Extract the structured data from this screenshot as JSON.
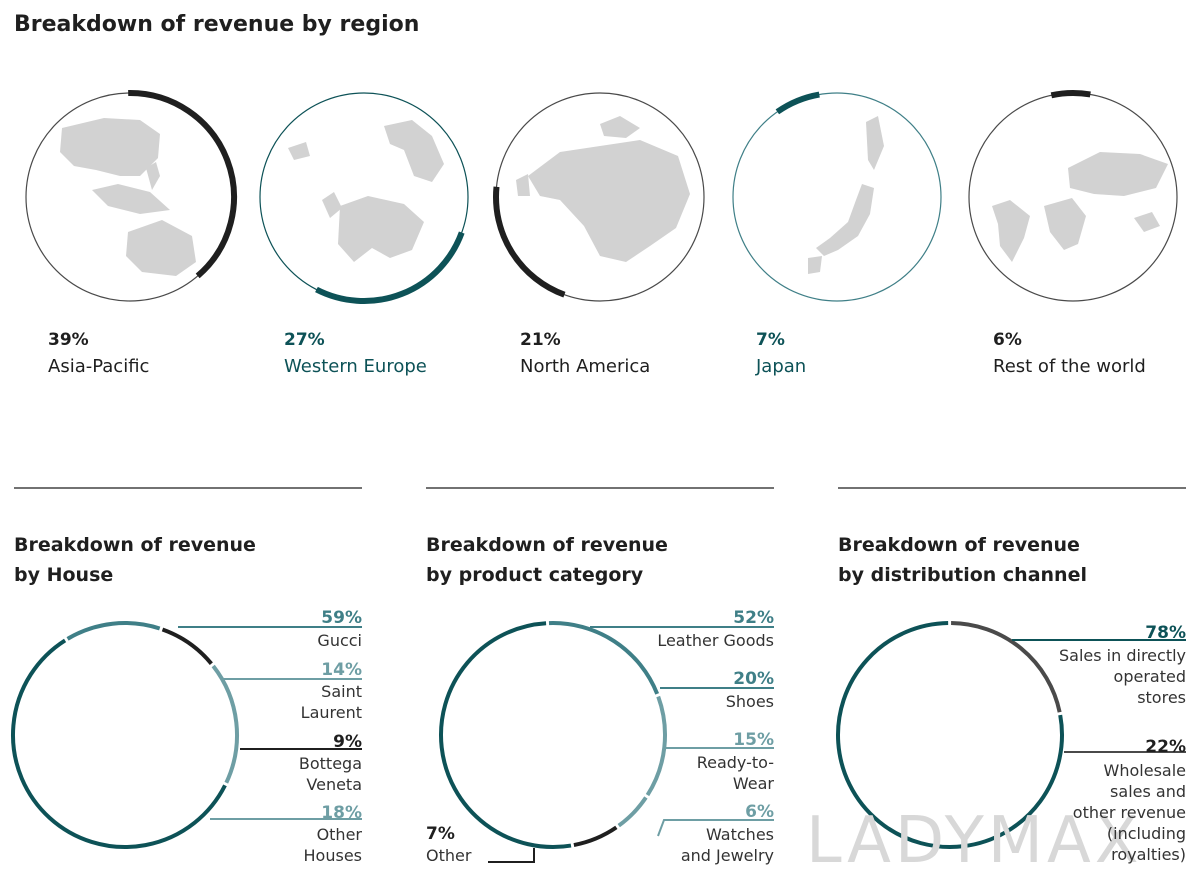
{
  "title": "Breakdown of revenue by region",
  "colors": {
    "dark": "#1f1f1f",
    "teal": "#0d5257",
    "teal_mid": "#3f7f87",
    "teal_light": "#6e9ea4",
    "grey_ring": "#4a4a4a"
  },
  "regions": [
    {
      "pct": "39%",
      "label": "Asia-Pacific",
      "value": 39,
      "color": "dark",
      "map": "asia-pacific-map-icon"
    },
    {
      "pct": "27%",
      "label": "Western Europe",
      "value": 27,
      "color": "teal",
      "map": "europe-map-icon"
    },
    {
      "pct": "21%",
      "label": "North America",
      "value": 21,
      "color": "dark",
      "map": "north-america-map-icon"
    },
    {
      "pct": "7%",
      "label": "Japan",
      "value": 7,
      "color": "teal",
      "map": "japan-map-icon"
    },
    {
      "pct": "6%",
      "label": "Rest of the world",
      "value": 6,
      "color": "dark",
      "map": "world-map-icon"
    }
  ],
  "house": {
    "title_line1": "Breakdown of revenue",
    "title_line2": "by House",
    "items": [
      {
        "pct": "59%",
        "lines": [
          "Gucci"
        ],
        "value": 59
      },
      {
        "pct": "14%",
        "lines": [
          "Saint",
          "Laurent"
        ],
        "value": 14
      },
      {
        "pct": "9%",
        "lines": [
          "Bottega",
          "Veneta"
        ],
        "value": 9
      },
      {
        "pct": "18%",
        "lines": [
          "Other",
          "Houses"
        ],
        "value": 18
      }
    ]
  },
  "category": {
    "title_line1": "Breakdown of revenue",
    "title_line2": "by product category",
    "items": [
      {
        "pct": "52%",
        "lines": [
          "Leather Goods"
        ],
        "value": 52
      },
      {
        "pct": "20%",
        "lines": [
          "Shoes"
        ],
        "value": 20
      },
      {
        "pct": "15%",
        "lines": [
          "Ready-to-",
          "Wear"
        ],
        "value": 15
      },
      {
        "pct": "6%",
        "lines": [
          "Watches",
          "and Jewelry"
        ],
        "value": 6
      },
      {
        "pct": "7%",
        "lines": [
          "Other"
        ],
        "value": 7
      }
    ]
  },
  "channel": {
    "title_line1": "Breakdown of revenue",
    "title_line2": "by distribution channel",
    "items": [
      {
        "pct": "78%",
        "lines": [
          "Sales in directly",
          "operated",
          "stores"
        ],
        "value": 78
      },
      {
        "pct": "22%",
        "lines": [
          "Wholesale",
          "sales and",
          "other revenue",
          "(including",
          "royalties)"
        ],
        "value": 22
      }
    ]
  },
  "watermark": "LADYMAX",
  "chart_data": [
    {
      "type": "pie",
      "title": "Breakdown of revenue by region",
      "categories": [
        "Asia-Pacific",
        "Western Europe",
        "North America",
        "Japan",
        "Rest of the world"
      ],
      "values": [
        39,
        27,
        21,
        7,
        6
      ],
      "unit": "%"
    },
    {
      "type": "pie",
      "title": "Breakdown of revenue by House",
      "categories": [
        "Gucci",
        "Saint Laurent",
        "Bottega Veneta",
        "Other Houses"
      ],
      "values": [
        59,
        14,
        9,
        18
      ],
      "unit": "%"
    },
    {
      "type": "pie",
      "title": "Breakdown of revenue by product category",
      "categories": [
        "Leather Goods",
        "Shoes",
        "Ready-to-Wear",
        "Watches and Jewelry",
        "Other"
      ],
      "values": [
        52,
        20,
        15,
        6,
        7
      ],
      "unit": "%"
    },
    {
      "type": "pie",
      "title": "Breakdown of revenue by distribution channel",
      "categories": [
        "Sales in directly operated stores",
        "Wholesale sales and other revenue (including royalties)"
      ],
      "values": [
        78,
        22
      ],
      "unit": "%"
    }
  ]
}
